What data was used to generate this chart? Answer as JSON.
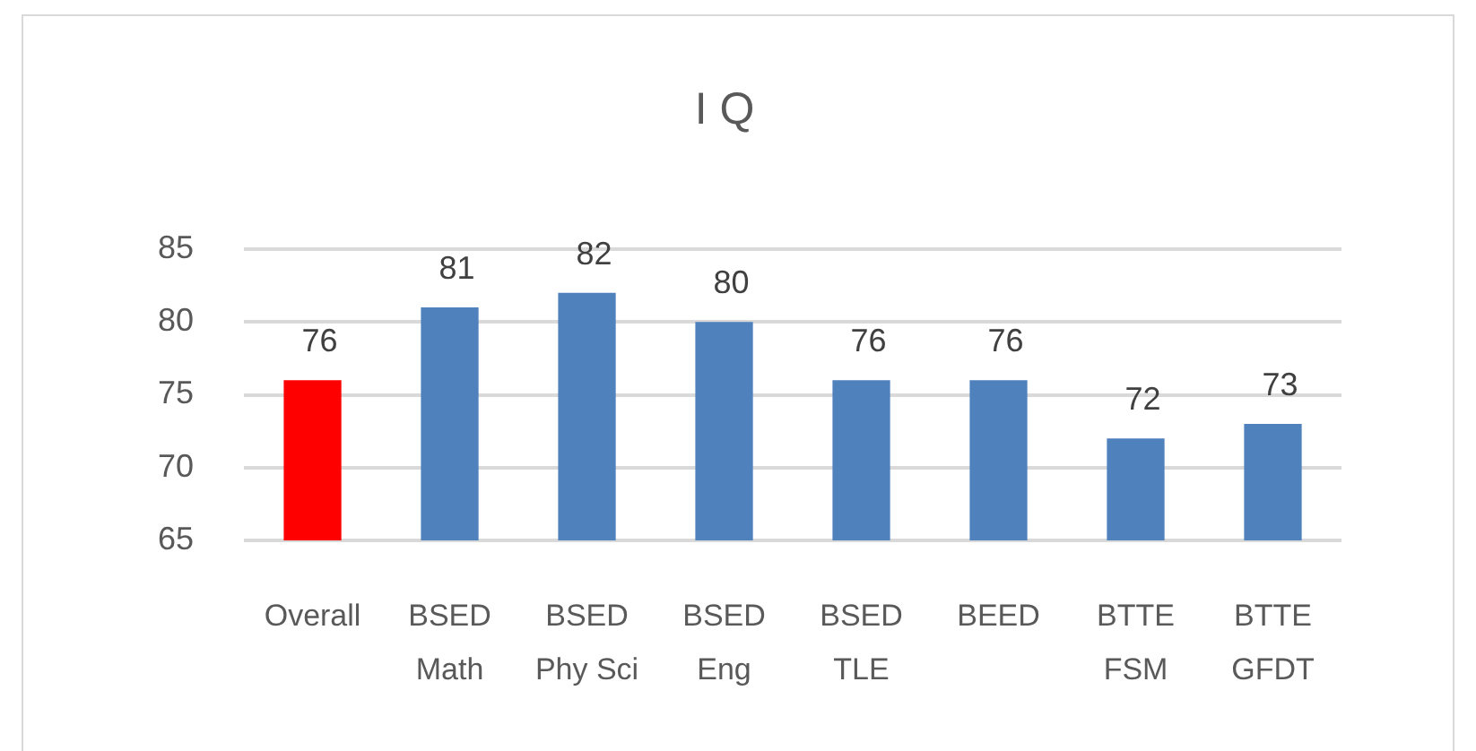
{
  "chart_data": {
    "type": "bar",
    "title": "I Q",
    "categories": [
      "Overall",
      "BSED Math",
      "BSED Phy Sci",
      "BSED Eng",
      "BSED TLE",
      "BEED",
      "BTTE FSM",
      "BTTE GFDT"
    ],
    "values": [
      76,
      81,
      82,
      80,
      76,
      76,
      72,
      73
    ],
    "colors": [
      "#ff0000",
      "#4f81bd",
      "#4f81bd",
      "#4f81bd",
      "#4f81bd",
      "#4f81bd",
      "#4f81bd",
      "#4f81bd"
    ],
    "ylim": [
      65,
      85
    ],
    "yticks": [
      65,
      70,
      75,
      80,
      85
    ],
    "grid": "y",
    "data_labels": true
  }
}
